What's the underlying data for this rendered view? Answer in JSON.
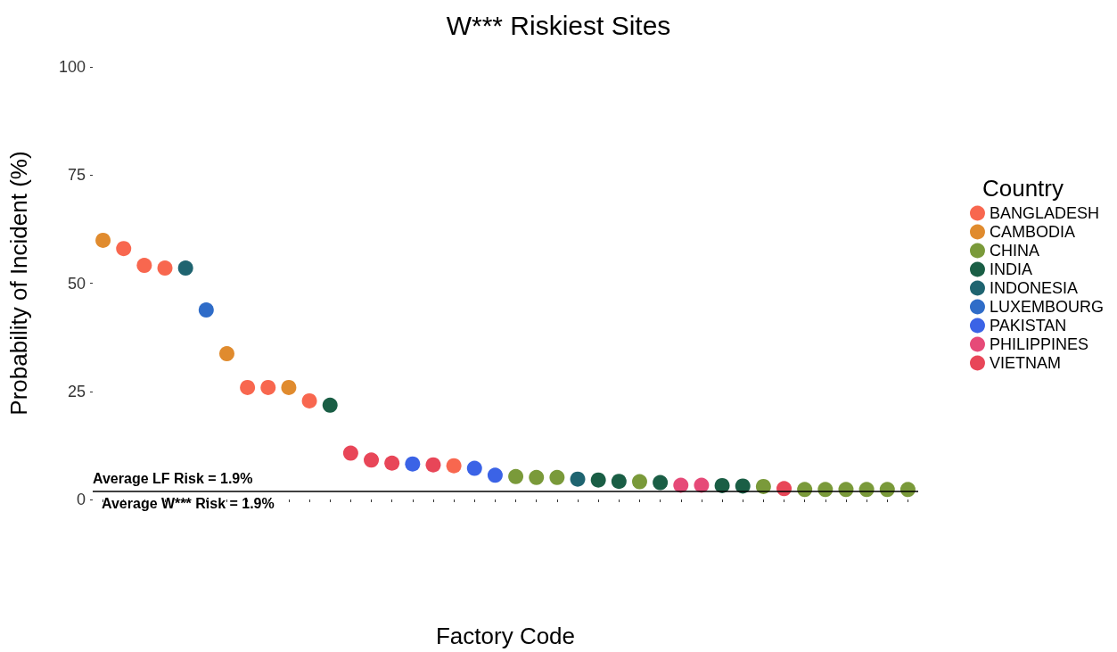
{
  "chart_data": {
    "type": "scatter",
    "title": "W*** Riskiest Sites",
    "xlabel": "Factory Code",
    "ylabel": "Probability of Incident (%)",
    "legend_title": "Country",
    "legend": "right",
    "grid": false,
    "marker": "circle",
    "categories": [
      null,
      null,
      null,
      null,
      null,
      null,
      null,
      null,
      null,
      null,
      null,
      null,
      null,
      null,
      null,
      null,
      null,
      null,
      null,
      null,
      null,
      null,
      null,
      null,
      null,
      null,
      null,
      null,
      null,
      null,
      null,
      null,
      null,
      null,
      null,
      null,
      null,
      null,
      null,
      null
    ],
    "ylim": [
      0,
      100
    ],
    "yticks": [
      0,
      25,
      50,
      75,
      100
    ],
    "series": [
      {
        "name": "BANGLADESH",
        "color": "#f8674f",
        "values": [
          null,
          58.0,
          54.1,
          53.5,
          null,
          null,
          null,
          25.9,
          25.9,
          null,
          22.8,
          null,
          null,
          null,
          null,
          null,
          null,
          7.8,
          null,
          null,
          null,
          null,
          null,
          null,
          null,
          null,
          null,
          null,
          null,
          null,
          null,
          null,
          null,
          null,
          null,
          null,
          null,
          null,
          null,
          null
        ]
      },
      {
        "name": "CAMBODIA",
        "color": "#e08b2e",
        "values": [
          59.9,
          null,
          null,
          null,
          null,
          null,
          33.7,
          null,
          null,
          25.9,
          null,
          null,
          null,
          null,
          null,
          null,
          null,
          null,
          null,
          null,
          null,
          null,
          null,
          null,
          null,
          null,
          null,
          null,
          null,
          null,
          null,
          null,
          null,
          null,
          null,
          null,
          null,
          null,
          null,
          null
        ]
      },
      {
        "name": "CHINA",
        "color": "#7a9a3a",
        "values": [
          null,
          null,
          null,
          null,
          null,
          null,
          null,
          null,
          null,
          null,
          null,
          null,
          null,
          null,
          null,
          null,
          null,
          null,
          null,
          null,
          5.3,
          5.1,
          5.1,
          null,
          null,
          null,
          4.1,
          null,
          null,
          null,
          null,
          null,
          3.0,
          null,
          2.3,
          2.3,
          2.3,
          2.3,
          2.3,
          2.3
        ]
      },
      {
        "name": "INDIA",
        "color": "#1a5e45",
        "values": [
          null,
          null,
          null,
          null,
          null,
          null,
          null,
          null,
          null,
          null,
          null,
          21.8,
          null,
          null,
          null,
          null,
          null,
          null,
          null,
          null,
          null,
          null,
          null,
          null,
          4.5,
          4.2,
          null,
          3.9,
          null,
          null,
          3.2,
          3.1,
          null,
          null,
          null,
          null,
          null,
          null,
          null,
          null
        ]
      },
      {
        "name": "INDONESIA",
        "color": "#1f6470",
        "values": [
          null,
          null,
          null,
          null,
          53.5,
          null,
          null,
          null,
          null,
          null,
          null,
          null,
          null,
          null,
          null,
          null,
          null,
          null,
          null,
          null,
          null,
          null,
          null,
          4.7,
          null,
          null,
          null,
          null,
          null,
          null,
          null,
          null,
          null,
          null,
          null,
          null,
          null,
          null,
          null,
          null
        ]
      },
      {
        "name": "LUXEMBOURG",
        "color": "#2f6cc8",
        "values": [
          null,
          null,
          null,
          null,
          null,
          43.8,
          null,
          null,
          null,
          null,
          null,
          null,
          null,
          null,
          null,
          null,
          null,
          null,
          null,
          null,
          null,
          null,
          null,
          null,
          null,
          null,
          null,
          null,
          null,
          null,
          null,
          null,
          null,
          null,
          null,
          null,
          null,
          null,
          null,
          null
        ]
      },
      {
        "name": "PAKISTAN",
        "color": "#3b63e6",
        "values": [
          null,
          null,
          null,
          null,
          null,
          null,
          null,
          null,
          null,
          null,
          null,
          null,
          null,
          null,
          null,
          8.2,
          null,
          null,
          7.2,
          5.6,
          null,
          null,
          null,
          null,
          null,
          null,
          null,
          null,
          null,
          null,
          null,
          null,
          null,
          null,
          null,
          null,
          null,
          null,
          null,
          null
        ]
      },
      {
        "name": "PHILIPPINES",
        "color": "#e64a78",
        "values": [
          null,
          null,
          null,
          null,
          null,
          null,
          null,
          null,
          null,
          null,
          null,
          null,
          null,
          null,
          null,
          null,
          null,
          null,
          null,
          null,
          null,
          null,
          null,
          null,
          null,
          null,
          null,
          null,
          3.3,
          3.3,
          null,
          null,
          null,
          null,
          null,
          null,
          null,
          null,
          null,
          null
        ]
      },
      {
        "name": "VIETNAM",
        "color": "#e84658",
        "values": [
          null,
          null,
          null,
          null,
          null,
          null,
          null,
          null,
          null,
          null,
          null,
          null,
          10.7,
          9.1,
          8.4,
          null,
          8.0,
          null,
          null,
          null,
          null,
          null,
          null,
          null,
          null,
          null,
          null,
          null,
          null,
          null,
          null,
          null,
          null,
          2.5,
          null,
          null,
          null,
          null,
          null,
          null
        ]
      }
    ],
    "ref_lines": [
      {
        "axis": "y",
        "value": 1.9,
        "label": "Average LF Risk = 1.9%",
        "color": "#000000"
      }
    ],
    "annotations": [
      {
        "text": "Average W*** Risk = 1.9%",
        "y": 1.9
      }
    ]
  }
}
